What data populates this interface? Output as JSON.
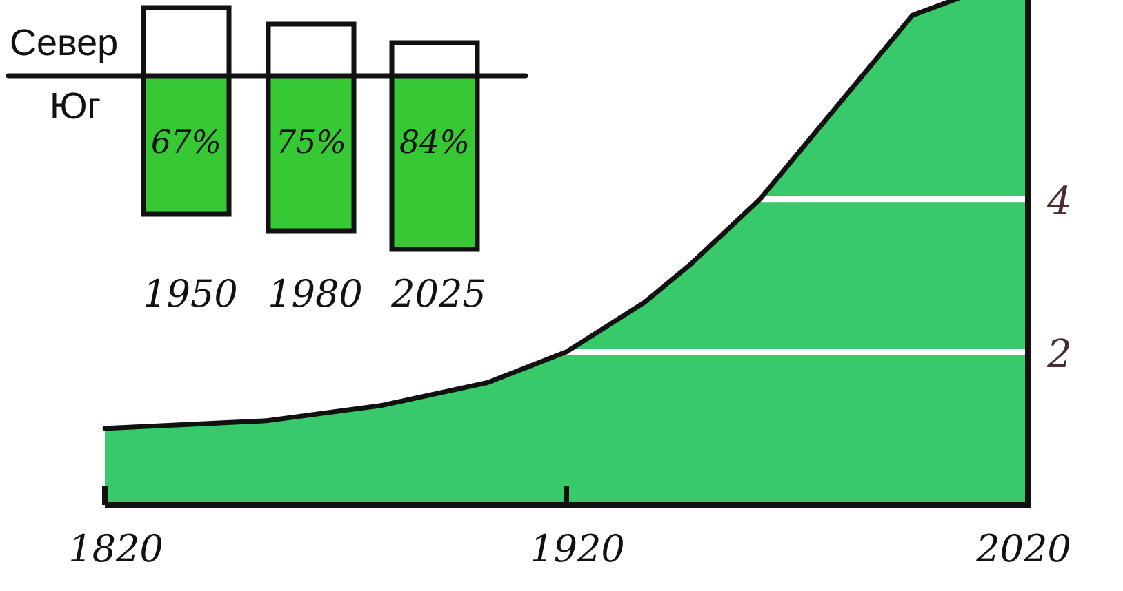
{
  "colors": {
    "area_fill": "#37c96a",
    "bar_fill": "#36c933",
    "outline": "#111111",
    "gridline": "#ffffff",
    "y_tick_label": "#4a2e2e"
  },
  "chart_data": [
    {
      "type": "area",
      "title": "",
      "xlabel": "",
      "ylabel": "",
      "x": [
        1820,
        1855,
        1880,
        1903,
        1920,
        1937,
        1947,
        1962,
        1995,
        2020
      ],
      "values": [
        1.0,
        1.1,
        1.3,
        1.6,
        2.0,
        2.65,
        3.15,
        4.0,
        6.4,
        7.8
      ],
      "x_ticks": [
        {
          "value": 1820,
          "label": "1820"
        },
        {
          "value": 1920,
          "label": "1920"
        },
        {
          "value": 2020,
          "label": "2020"
        }
      ],
      "y_ticks": [
        {
          "value": 2,
          "label": "2"
        },
        {
          "value": 4,
          "label": "4"
        }
      ],
      "xlim": [
        1820,
        2020
      ],
      "ylim": [
        0,
        6.6
      ],
      "grid": "horizontal at y ticks",
      "y_axis_side": "right"
    },
    {
      "type": "bar",
      "title": "",
      "top_label": "Север",
      "bottom_label": "Юг",
      "categories": [
        "1950",
        "1980",
        "2025"
      ],
      "values": [
        67,
        75,
        84
      ],
      "value_labels": [
        "67%",
        "75%",
        "84%"
      ],
      "unit": "%",
      "ylim": [
        0,
        100
      ]
    }
  ]
}
